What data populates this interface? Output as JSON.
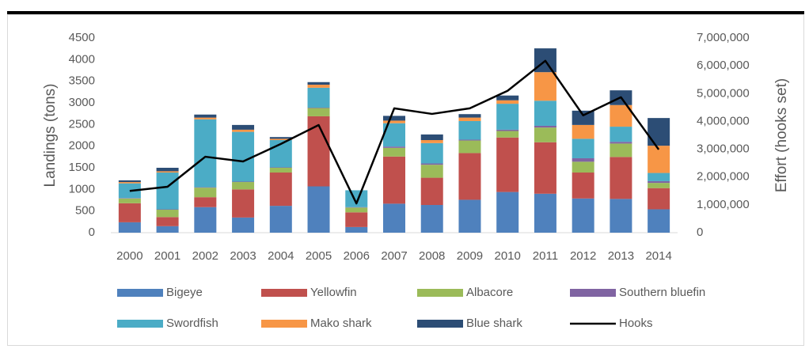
{
  "chart_data": {
    "type": "bar",
    "categories": [
      "2000",
      "2001",
      "2002",
      "2003",
      "2004",
      "2005",
      "2006",
      "2007",
      "2008",
      "2009",
      "2010",
      "2011",
      "2012",
      "2013",
      "2014"
    ],
    "ylabel": "Landings (tons)",
    "y2label": "Effort (hooks set)",
    "ylim": [
      0,
      4500
    ],
    "yticks": [
      0,
      500,
      1000,
      1500,
      2000,
      2500,
      3000,
      3500,
      4000,
      4500
    ],
    "y2lim": [
      0,
      7000000
    ],
    "y2ticks": [
      0,
      {
        "value": 1000000,
        "label": "1,000,000"
      },
      {
        "value": 2000000,
        "label": "2,000,000"
      },
      {
        "value": 3000000,
        "label": "3,000,000"
      },
      {
        "value": 4000000,
        "label": "4,000,000"
      },
      {
        "value": 5000000,
        "label": "5,000,000"
      },
      {
        "value": 6000000,
        "label": "6,000,000"
      },
      {
        "value": 7000000,
        "label": "7,000,000"
      }
    ],
    "stacked": true,
    "series": [
      {
        "name": "Bigeye",
        "color": "#4f81bd",
        "values": [
          240,
          150,
          590,
          350,
          620,
          1070,
          130,
          670,
          640,
          760,
          940,
          900,
          790,
          780,
          540
        ]
      },
      {
        "name": "Yellowfin",
        "color": "#c0504d",
        "values": [
          440,
          210,
          230,
          650,
          770,
          1620,
          340,
          1090,
          630,
          1080,
          1260,
          1190,
          600,
          970,
          490
        ]
      },
      {
        "name": "Albacore",
        "color": "#9bbb59",
        "values": [
          110,
          170,
          220,
          170,
          110,
          190,
          110,
          200,
          300,
          290,
          150,
          340,
          250,
          310,
          120
        ]
      },
      {
        "name": "Southern bluefin",
        "color": "#8064a2",
        "values": [
          10,
          10,
          10,
          10,
          10,
          10,
          10,
          30,
          30,
          20,
          30,
          40,
          80,
          40,
          40
        ]
      },
      {
        "name": "Swordfish",
        "color": "#4bacc6",
        "values": [
          340,
          850,
          1570,
          1150,
          630,
          460,
          390,
          540,
          470,
          430,
          600,
          580,
          450,
          350,
          190
        ]
      },
      {
        "name": "Mako shark",
        "color": "#f79646",
        "values": [
          30,
          30,
          40,
          50,
          30,
          70,
          0,
          60,
          70,
          80,
          80,
          660,
          320,
          500,
          630
        ]
      },
      {
        "name": "Blue shark",
        "color": "#2c4d75",
        "values": [
          40,
          80,
          70,
          110,
          40,
          60,
          0,
          110,
          130,
          80,
          110,
          550,
          330,
          340,
          640
        ]
      },
      {
        "name": "Hooks",
        "color": "#000000",
        "type": "line",
        "axis": "y2",
        "values": [
          1500000,
          1650000,
          2730000,
          2560000,
          3190000,
          3870000,
          1050000,
          4470000,
          4270000,
          4470000,
          5100000,
          6180000,
          4220000,
          4870000,
          2990000
        ]
      }
    ]
  }
}
